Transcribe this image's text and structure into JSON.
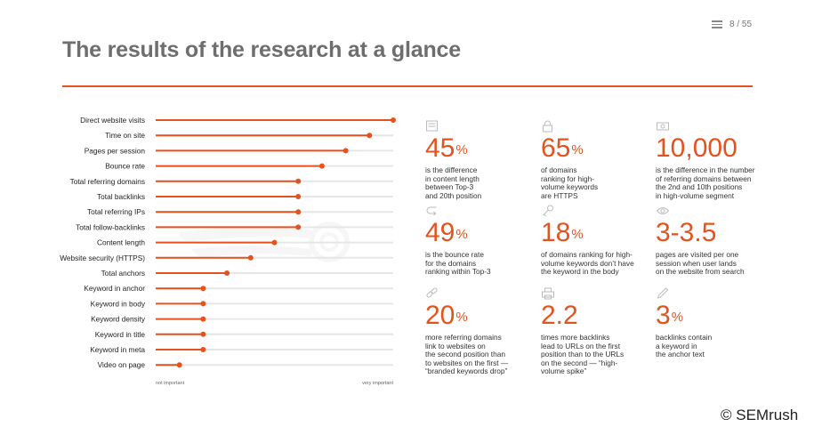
{
  "header": {
    "page_indicator": "8 / 55",
    "title": "The results of the research at a glance"
  },
  "chart_data": {
    "type": "scatter",
    "title": "",
    "categories": [
      "Direct website visits",
      "Time on site",
      "Pages per session",
      "Bounce rate",
      "Total referring domains",
      "Total backlinks",
      "Total referring IPs",
      "Total follow-backlinks",
      "Content length",
      "Website security (HTTPS)",
      "Total anchors",
      "Keyword in anchor",
      "Keyword in body",
      "Keyword density",
      "Keyword in title",
      "Keyword in meta",
      "Video on page"
    ],
    "values": [
      1.0,
      0.9,
      0.8,
      0.7,
      0.6,
      0.6,
      0.6,
      0.6,
      0.5,
      0.4,
      0.3,
      0.2,
      0.2,
      0.2,
      0.2,
      0.2,
      0.1
    ],
    "x_min_label": "not important",
    "x_max_label": "very important",
    "xlim": [
      0,
      1
    ],
    "accent": "#e4531e",
    "track_color": "#e6e6e6"
  },
  "stats": [
    {
      "value": "45",
      "sup": "%",
      "icon": "document-icon",
      "lines": [
        "is the difference",
        "in content length",
        "between Top-3",
        "and 20th position"
      ]
    },
    {
      "value": "65",
      "sup": "%",
      "icon": "lock-icon",
      "lines": [
        "of domains",
        "ranking for high-",
        "volume keywords",
        "are HTTPS"
      ]
    },
    {
      "value": "10,000",
      "sup": "",
      "icon": "money-icon",
      "lines": [
        "is the difference in the number",
        "of referring domains between",
        "the 2nd and 10th positions",
        "in high-volume segment"
      ]
    },
    {
      "value": "49",
      "sup": "%",
      "icon": "return-arrow-icon",
      "lines": [
        "is the bounce rate",
        "for the domains",
        "ranking within Top-3"
      ]
    },
    {
      "value": "18",
      "sup": "%",
      "icon": "key-icon",
      "lines": [
        "of domains ranking for high-",
        "volume keywords don’t have",
        "the keyword in the body"
      ]
    },
    {
      "value": "3-3.5",
      "sup": "",
      "icon": "eye-icon",
      "lines": [
        "pages are visited per one",
        "session when user lands",
        "on the website from search"
      ]
    },
    {
      "value": "20",
      "sup": "%",
      "icon": "link-icon",
      "lines": [
        "more referring domains",
        "link to websites on",
        "the second position than",
        "to websites on the first —",
        "“branded keywords drop”"
      ]
    },
    {
      "value": "2.2",
      "sup": "",
      "icon": "print-icon",
      "lines": [
        "times more backlinks",
        "lead to URLs on the first",
        "position than to the URLs",
        "on the second — “high-",
        "volume spike”"
      ]
    },
    {
      "value": "3",
      "sup": "%",
      "icon": "pencil-icon",
      "lines": [
        "backlinks contain",
        "a keyword in",
        "the anchor text"
      ]
    }
  ],
  "footer": {
    "brand": "© SEMrush"
  }
}
